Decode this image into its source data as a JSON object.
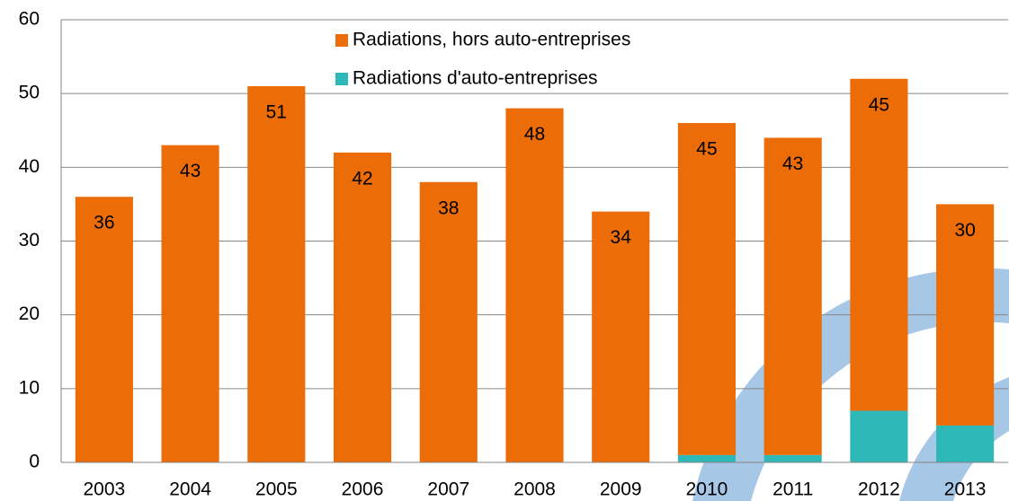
{
  "chart_data": {
    "type": "bar",
    "stacked": true,
    "categories": [
      "2003",
      "2004",
      "2005",
      "2006",
      "2007",
      "2008",
      "2009",
      "2010",
      "2011",
      "2012",
      "2013"
    ],
    "series": [
      {
        "name": "Radiations d'auto-entreprises",
        "color": "#2eb8b8",
        "values": [
          0,
          0,
          0,
          0,
          0,
          0,
          0,
          1,
          1,
          7,
          5
        ]
      },
      {
        "name": "Radiations, hors auto-entreprises",
        "color": "#ec6c08",
        "values": [
          36,
          43,
          51,
          42,
          38,
          48,
          34,
          45,
          43,
          45,
          30
        ]
      }
    ],
    "ylim": [
      0,
      60
    ],
    "yticks": [
      0,
      10,
      20,
      30,
      40,
      50,
      60
    ],
    "grid": true
  }
}
